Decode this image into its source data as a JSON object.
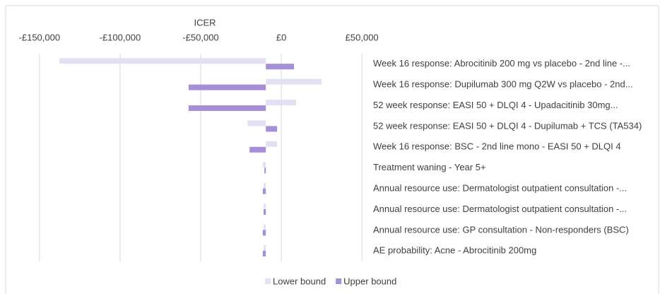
{
  "chart_data": {
    "type": "tornado",
    "orientation": "horizontal",
    "x_label": "ICER",
    "categories": [
      "Week 16 response: Abrocitinib 200 mg vs placebo - 2nd line -...",
      "Week 16 response: Dupilumab 300 mg Q2W vs placebo - 2nd...",
      "52 week response: EASI 50 + DLQI 4 - Upadacitinib 30mg...",
      "52 week response: EASI 50 + DLQI 4 - Dupilumab + TCS (TA534)",
      "Week 16 response: BSC - 2nd line mono - EASI 50 + DLQI 4",
      "Treatment waning - Year 5+",
      "Annual resource use: Dermatologist outpatient consultation -...",
      "Annual resource use: Dermatologist outpatient consultation -...",
      "Annual resource use: GP consultation - Non-responders (BSC)",
      "AE probability: Acne - Abrocitinib 200mg"
    ],
    "base": -9600,
    "series": [
      {
        "name": "Lower bound",
        "color": "#e4dff2",
        "values": [
          -137700,
          25000,
          9200,
          -21000,
          -2600,
          -11500,
          -11000,
          -11000,
          -11000,
          -11000
        ]
      },
      {
        "name": "Upper bound",
        "color": "#a68fd8",
        "values": [
          7900,
          -57500,
          -57500,
          -2600,
          -19700,
          -10500,
          -11500,
          -11000,
          -11500,
          -11500
        ]
      }
    ],
    "xlim": [
      -160000,
      60000
    ],
    "xticks": [
      {
        "value": -150000,
        "label": "-£150,000"
      },
      {
        "value": -100000,
        "label": "-£100,000"
      },
      {
        "value": -50000,
        "label": "-£50,000"
      },
      {
        "value": 0,
        "label": "£0"
      },
      {
        "value": 50000,
        "label": "£50,000"
      }
    ],
    "grid": true,
    "legend": "bottom"
  }
}
